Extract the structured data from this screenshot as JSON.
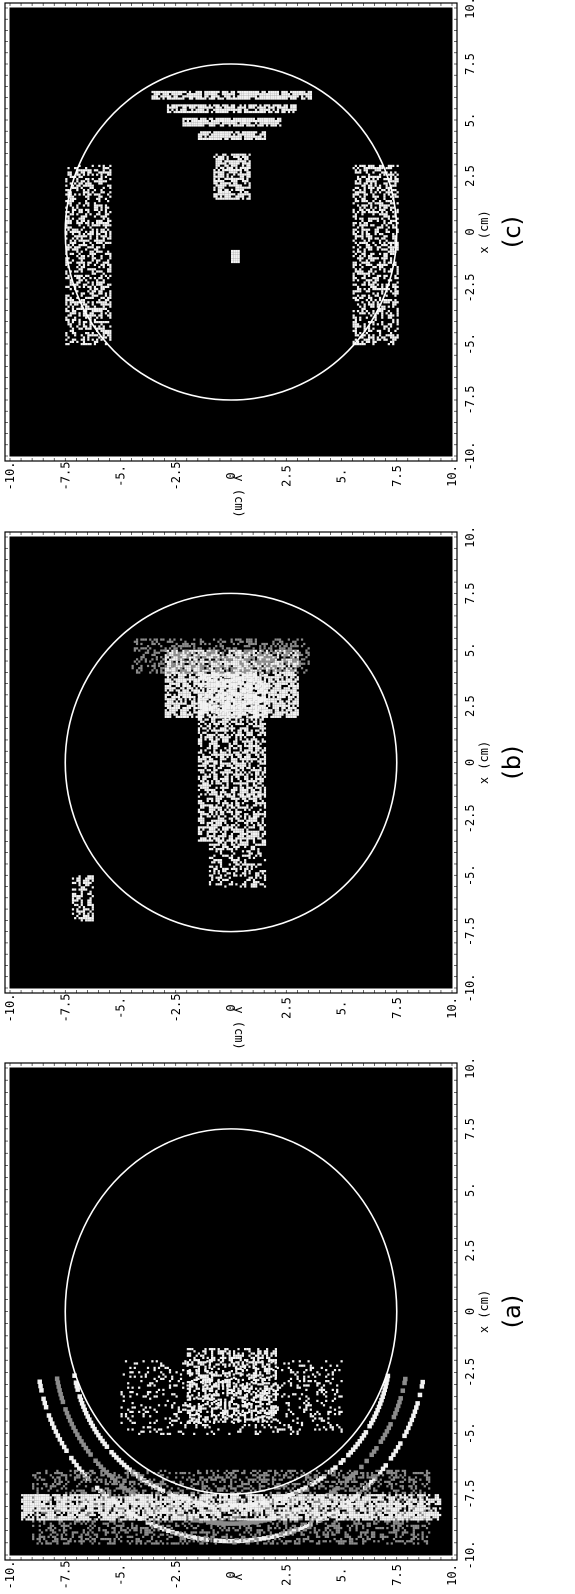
{
  "chart_data": [
    {
      "type": "heatmap",
      "panel_label": "(a)",
      "xlabel": "x (cm)",
      "ylabel": "y (cm)",
      "xlim": [
        10,
        -10
      ],
      "ylim": [
        -10,
        10
      ],
      "x_ticks": [
        "10.",
        "7.5",
        "5.",
        "2.5",
        "0",
        "-2.5",
        "-5.",
        "-7.5",
        "-10."
      ],
      "y_ticks": [
        "10.",
        "7.5",
        "5.",
        "2.5",
        "0",
        "-2.5",
        "-5.",
        "-7.5",
        "-10."
      ],
      "circle": {
        "cx": 0,
        "cy": 0,
        "r": 7.5
      },
      "colors": {
        "background": "#000000",
        "circle": "#ffffff",
        "bright": "#f2f2f2",
        "mid": "#8c8c8c"
      }
    },
    {
      "type": "heatmap",
      "panel_label": "(b)",
      "xlabel": "x (cm)",
      "ylabel": "y (cm)",
      "xlim": [
        10,
        -10
      ],
      "ylim": [
        -10,
        10
      ],
      "x_ticks": [
        "10.",
        "7.5",
        "5.",
        "2.5",
        "0",
        "-2.5",
        "-5.",
        "-7.5",
        "-10."
      ],
      "y_ticks": [
        "10.",
        "7.5",
        "5.",
        "2.5",
        "0",
        "-2.5",
        "-5.",
        "-7.5",
        "-10."
      ],
      "circle": {
        "cx": 0,
        "cy": 0,
        "r": 7.5
      },
      "colors": {
        "background": "#000000",
        "circle": "#ffffff",
        "bright": "#f2f2f2",
        "mid": "#8c8c8c"
      }
    },
    {
      "type": "heatmap",
      "panel_label": "(c)",
      "xlabel": "x (cm)",
      "ylabel": "y (cm)",
      "xlim": [
        10,
        -10
      ],
      "ylim": [
        -10,
        10
      ],
      "x_ticks": [
        "10.",
        "7.5",
        "5.",
        "2.5",
        "0",
        "-2.5",
        "-5.",
        "-7.5",
        "-10."
      ],
      "y_ticks": [
        "10.",
        "7.5",
        "5.",
        "2.5",
        "0",
        "-2.5",
        "-5.",
        "-7.5",
        "-10."
      ],
      "circle": {
        "cx": 0,
        "cy": 0,
        "r": 7.5
      },
      "colors": {
        "background": "#000000",
        "circle": "#ffffff",
        "bright": "#f2f2f2",
        "mid": "#8c8c8c"
      }
    }
  ]
}
